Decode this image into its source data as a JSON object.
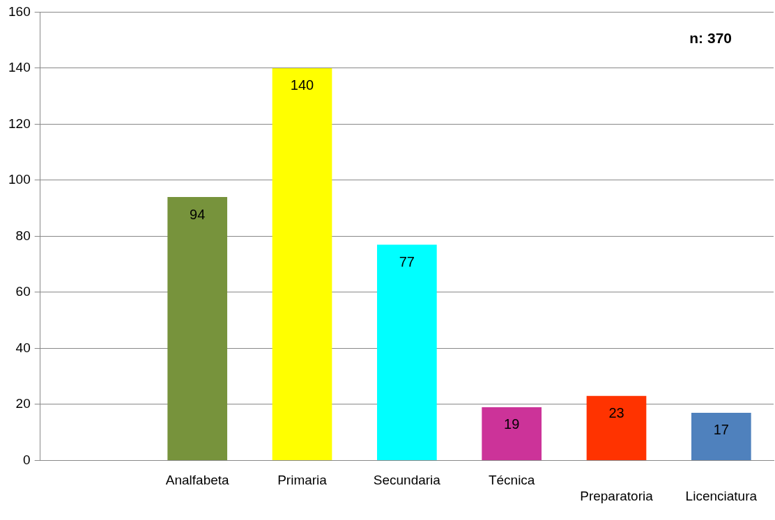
{
  "chart_data": {
    "type": "bar",
    "categories": [
      null,
      "Analfabeta",
      "Primaria",
      "Secundaria",
      "Técnica",
      "Preparatoria",
      "Licenciatura"
    ],
    "values": [
      null,
      94,
      140,
      77,
      19,
      23,
      17
    ],
    "colors": [
      "#77933c",
      "#77933c",
      "#ffff00",
      "#00ffff",
      "#cc3399",
      "#ff3300",
      "#4f81bd"
    ],
    "ylim": [
      0,
      160
    ],
    "yticks": [
      0,
      20,
      40,
      60,
      80,
      100,
      120,
      140,
      160
    ],
    "grid": "y",
    "legend": false,
    "data_labels": true,
    "annotations": [
      "n: 370"
    ]
  }
}
